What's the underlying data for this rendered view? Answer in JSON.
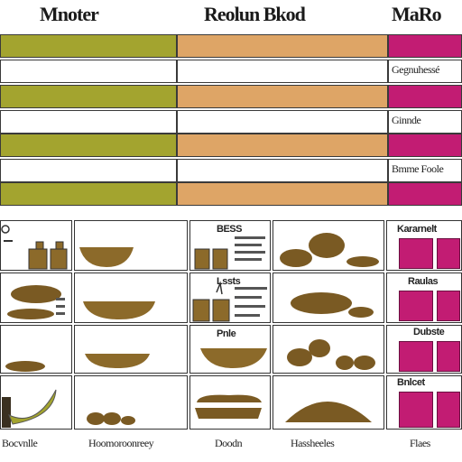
{
  "headers": {
    "col1": "Mnoter",
    "col2": "Reolun Bkod",
    "col3": "MaRo"
  },
  "side_labels": [
    "Gegnuhessé",
    "Ginnde",
    "Bmme Foole"
  ],
  "grid_labels": {
    "r1c3": "BESS",
    "r2c3": "Lssts",
    "r3c3": "Pnle",
    "r1c5": "Kararnelt",
    "r2c5": "Raulas",
    "r3c5": "Dubste",
    "r4c5": "Bnlcet"
  },
  "footer": {
    "f1": "Bocvnlle",
    "f2": "Hoomoroonreey",
    "f3": "Doodn",
    "f4": "Hassheeles",
    "f5": "Flaes"
  },
  "colors": {
    "olive": "#a3a42f",
    "tan": "#dea566",
    "magenta": "#c21c73",
    "food_brown": "#7a5a23"
  }
}
